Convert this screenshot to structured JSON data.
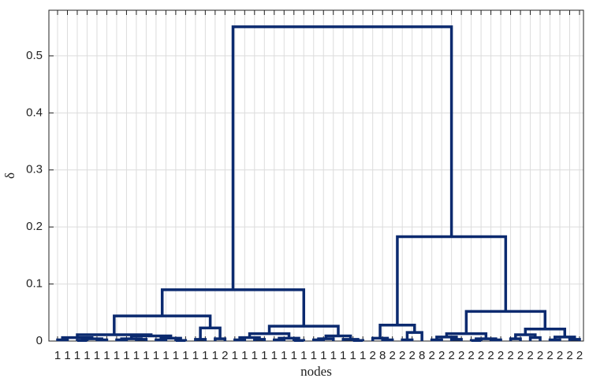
{
  "chart_data": {
    "type": "dendrogram",
    "y_label": "δ",
    "x_label": "nodes",
    "color": "#0b2a6f",
    "ylim": [
      0,
      0.58
    ],
    "yticks": [
      0,
      0.1,
      0.2,
      0.3,
      0.4,
      0.5
    ],
    "grid": true,
    "tree": {
      "height": 0.551,
      "children": [
        {
          "height": 0.09,
          "children": [
            {
              "height": 0.044,
              "children": [
                {
                  "height": 0.011,
                  "children": [
                    {
                      "height": 0.006,
                      "children": [
                        {
                          "height": 0.002,
                          "children": [
                            {
                              "label": "1"
                            },
                            {
                              "label": "1"
                            }
                          ]
                        },
                        {
                          "height": 0.004,
                          "children": [
                            {
                              "height": 0.001,
                              "children": [
                                {
                                  "label": "1"
                                },
                                {
                                  "label": "1"
                                }
                              ]
                            },
                            {
                              "height": 0.002,
                              "children": [
                                {
                                  "label": "1"
                                },
                                {
                                  "label": "1"
                                }
                              ]
                            }
                          ]
                        }
                      ]
                    },
                    {
                      "height": 0.009,
                      "children": [
                        {
                          "height": 0.004,
                          "children": [
                            {
                              "height": 0.002,
                              "children": [
                                {
                                  "label": "1"
                                },
                                {
                                  "label": "1"
                                }
                              ]
                            },
                            {
                              "height": 0.003,
                              "children": [
                                {
                                  "label": "1"
                                },
                                {
                                  "label": "1"
                                }
                              ]
                            }
                          ]
                        },
                        {
                          "height": 0.005,
                          "children": [
                            {
                              "height": 0.002,
                              "children": [
                                {
                                  "label": "1"
                                },
                                {
                                  "label": "1"
                                }
                              ]
                            },
                            {
                              "height": 0.001,
                              "children": [
                                {
                                  "label": "1"
                                },
                                {
                                  "label": "1"
                                }
                              ]
                            }
                          ]
                        }
                      ]
                    }
                  ]
                },
                {
                  "height": 0.023,
                  "children": [
                    {
                      "height": 0.003,
                      "children": [
                        {
                          "label": "1"
                        },
                        {
                          "label": "1"
                        }
                      ]
                    },
                    {
                      "height": 0.004,
                      "children": [
                        {
                          "label": "1"
                        },
                        {
                          "label": "2"
                        }
                      ]
                    }
                  ]
                }
              ]
            },
            {
              "height": 0.026,
              "children": [
                {
                  "height": 0.013,
                  "children": [
                    {
                      "height": 0.006,
                      "children": [
                        {
                          "height": 0.002,
                          "children": [
                            {
                              "label": "1"
                            },
                            {
                              "label": "1"
                            }
                          ]
                        },
                        {
                          "height": 0.003,
                          "children": [
                            {
                              "label": "1"
                            },
                            {
                              "label": "1"
                            }
                          ]
                        }
                      ]
                    },
                    {
                      "height": 0.005,
                      "children": [
                        {
                          "height": 0.002,
                          "children": [
                            {
                              "label": "1"
                            },
                            {
                              "label": "1"
                            }
                          ]
                        },
                        {
                          "height": 0.001,
                          "children": [
                            {
                              "label": "1"
                            },
                            {
                              "label": "1"
                            }
                          ]
                        }
                      ]
                    }
                  ]
                },
                {
                  "height": 0.009,
                  "children": [
                    {
                      "height": 0.004,
                      "children": [
                        {
                          "height": 0.002,
                          "children": [
                            {
                              "label": "1"
                            },
                            {
                              "label": "1"
                            }
                          ]
                        },
                        {
                          "label": "1"
                        }
                      ]
                    },
                    {
                      "height": 0.003,
                      "children": [
                        {
                          "label": "1"
                        },
                        {
                          "height": 0.001,
                          "children": [
                            {
                              "label": "1"
                            },
                            {
                              "label": "1"
                            }
                          ]
                        }
                      ]
                    }
                  ]
                }
              ]
            }
          ]
        },
        {
          "height": 0.183,
          "children": [
            {
              "height": 0.028,
              "children": [
                {
                  "height": 0.005,
                  "children": [
                    {
                      "label": "2"
                    },
                    {
                      "height": 0.002,
                      "children": [
                        {
                          "label": "8"
                        },
                        {
                          "label": "2"
                        }
                      ]
                    }
                  ]
                },
                {
                  "height": 0.015,
                  "children": [
                    {
                      "height": 0.002,
                      "children": [
                        {
                          "label": "2"
                        },
                        {
                          "label": "2"
                        }
                      ]
                    },
                    {
                      "label": "8"
                    }
                  ]
                }
              ]
            },
            {
              "height": 0.052,
              "children": [
                {
                  "height": 0.013,
                  "children": [
                    {
                      "height": 0.007,
                      "children": [
                        {
                          "height": 0.002,
                          "children": [
                            {
                              "label": "2"
                            },
                            {
                              "label": "2"
                            }
                          ]
                        },
                        {
                          "height": 0.003,
                          "children": [
                            {
                              "label": "2"
                            },
                            {
                              "label": "2"
                            }
                          ]
                        }
                      ]
                    },
                    {
                      "height": 0.004,
                      "children": [
                        {
                          "height": 0.001,
                          "children": [
                            {
                              "label": "2"
                            },
                            {
                              "label": "2"
                            }
                          ]
                        },
                        {
                          "height": 0.002,
                          "children": [
                            {
                              "label": "2"
                            },
                            {
                              "label": "2"
                            }
                          ]
                        }
                      ]
                    }
                  ]
                },
                {
                  "height": 0.021,
                  "children": [
                    {
                      "height": 0.011,
                      "children": [
                        {
                          "height": 0.004,
                          "children": [
                            {
                              "label": "2"
                            },
                            {
                              "label": "2"
                            }
                          ]
                        },
                        {
                          "height": 0.006,
                          "children": [
                            {
                              "label": "2"
                            },
                            {
                              "label": "2"
                            }
                          ]
                        }
                      ]
                    },
                    {
                      "height": 0.007,
                      "children": [
                        {
                          "height": 0.002,
                          "children": [
                            {
                              "label": "2"
                            },
                            {
                              "label": "2"
                            }
                          ]
                        },
                        {
                          "height": 0.003,
                          "children": [
                            {
                              "label": "2"
                            },
                            {
                              "label": "2"
                            }
                          ]
                        }
                      ]
                    }
                  ]
                }
              ]
            }
          ]
        }
      ]
    }
  }
}
